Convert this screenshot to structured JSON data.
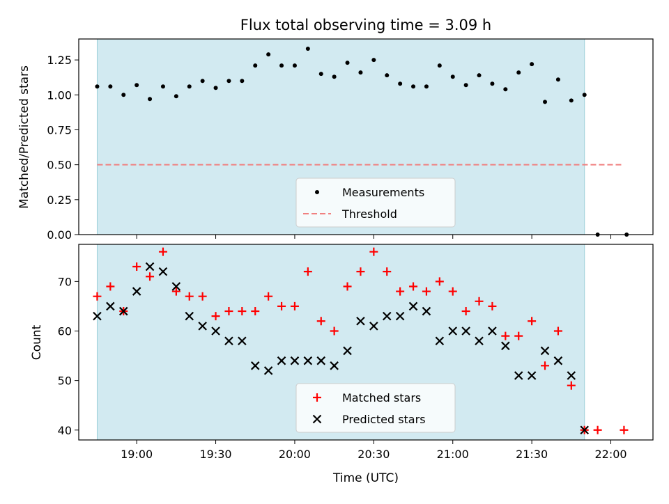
{
  "chart_data": {
    "type": "scatter",
    "title": "Flux total observing time = 3.09 h",
    "xlabel": "Time (UTC)",
    "x_ticks": [
      "19:00",
      "19:30",
      "20:00",
      "20:30",
      "21:00",
      "21:30",
      "22:00"
    ],
    "x_range": [
      "18:38",
      "22:16"
    ],
    "shaded_interval": [
      "18:45",
      "21:50"
    ],
    "colors": {
      "shade": "#add8e6",
      "measurement": "#000000",
      "threshold": "#f08080",
      "matched": "#ff0000",
      "predicted": "#000000"
    },
    "panels": [
      {
        "ylabel": "Matched/Predicted stars",
        "ylim": [
          0,
          1.4
        ],
        "y_ticks": [
          "0.00",
          "0.25",
          "0.50",
          "0.75",
          "1.00",
          "1.25"
        ],
        "legend": "lower-center",
        "series": [
          {
            "name": "Measurements",
            "marker": "dot",
            "x": [
              "18:45",
              "18:50",
              "18:55",
              "19:00",
              "19:05",
              "19:10",
              "19:15",
              "19:20",
              "19:25",
              "19:30",
              "19:35",
              "19:40",
              "19:45",
              "19:50",
              "19:55",
              "20:00",
              "20:05",
              "20:10",
              "20:15",
              "20:20",
              "20:25",
              "20:30",
              "20:35",
              "20:40",
              "20:45",
              "20:50",
              "20:55",
              "21:00",
              "21:05",
              "21:10",
              "21:15",
              "21:20",
              "21:25",
              "21:30",
              "21:35",
              "21:40",
              "21:45",
              "21:50",
              "21:55",
              "22:06"
            ],
            "values": [
              1.06,
              1.06,
              1.0,
              1.07,
              0.97,
              1.06,
              0.99,
              1.06,
              1.1,
              1.05,
              1.1,
              1.1,
              1.21,
              1.29,
              1.21,
              1.21,
              1.33,
              1.15,
              1.13,
              1.23,
              1.16,
              1.25,
              1.14,
              1.08,
              1.06,
              1.06,
              1.21,
              1.13,
              1.07,
              1.14,
              1.08,
              1.04,
              1.16,
              1.22,
              0.95,
              1.11,
              0.96,
              1.0,
              0.0,
              0.0
            ]
          },
          {
            "name": "Threshold",
            "line": "dashed",
            "x": [
              "18:45",
              "22:05"
            ],
            "values": [
              0.5,
              0.5
            ]
          }
        ]
      },
      {
        "ylabel": "Count",
        "ylim": [
          38,
          77.5
        ],
        "y_ticks": [
          "40",
          "50",
          "60",
          "70"
        ],
        "legend": "lower-center",
        "series": [
          {
            "name": "Matched stars",
            "marker": "plus",
            "x": [
              "18:45",
              "18:50",
              "18:55",
              "19:00",
              "19:05",
              "19:10",
              "19:15",
              "19:20",
              "19:25",
              "19:30",
              "19:35",
              "19:40",
              "19:45",
              "19:50",
              "19:55",
              "20:00",
              "20:05",
              "20:10",
              "20:15",
              "20:20",
              "20:25",
              "20:30",
              "20:35",
              "20:40",
              "20:45",
              "20:50",
              "20:55",
              "21:00",
              "21:05",
              "21:10",
              "21:15",
              "21:20",
              "21:25",
              "21:30",
              "21:35",
              "21:40",
              "21:45",
              "21:50",
              "21:55",
              "22:05"
            ],
            "values": [
              67,
              69,
              64,
              73,
              71,
              76,
              68,
              67,
              67,
              63,
              64,
              64,
              64,
              67,
              65,
              65,
              72,
              62,
              60,
              69,
              72,
              76,
              72,
              68,
              69,
              68,
              70,
              68,
              64,
              66,
              65,
              59,
              59,
              62,
              53,
              60,
              49,
              40,
              40,
              40
            ]
          },
          {
            "name": "Predicted stars",
            "marker": "x",
            "x": [
              "18:45",
              "18:50",
              "18:55",
              "19:00",
              "19:05",
              "19:10",
              "19:15",
              "19:20",
              "19:25",
              "19:30",
              "19:35",
              "19:40",
              "19:45",
              "19:50",
              "19:55",
              "20:00",
              "20:05",
              "20:10",
              "20:15",
              "20:20",
              "20:25",
              "20:30",
              "20:35",
              "20:40",
              "20:45",
              "20:50",
              "20:55",
              "21:00",
              "21:05",
              "21:10",
              "21:15",
              "21:20",
              "21:25",
              "21:30",
              "21:35",
              "21:40",
              "21:45",
              "21:50"
            ],
            "values": [
              63,
              65,
              64,
              68,
              73,
              72,
              69,
              63,
              61,
              60,
              58,
              58,
              53,
              52,
              54,
              54,
              54,
              54,
              53,
              56,
              62,
              61,
              63,
              63,
              65,
              64,
              58,
              60,
              60,
              58,
              60,
              57,
              51,
              51,
              56,
              54,
              51,
              40
            ]
          }
        ]
      }
    ]
  }
}
